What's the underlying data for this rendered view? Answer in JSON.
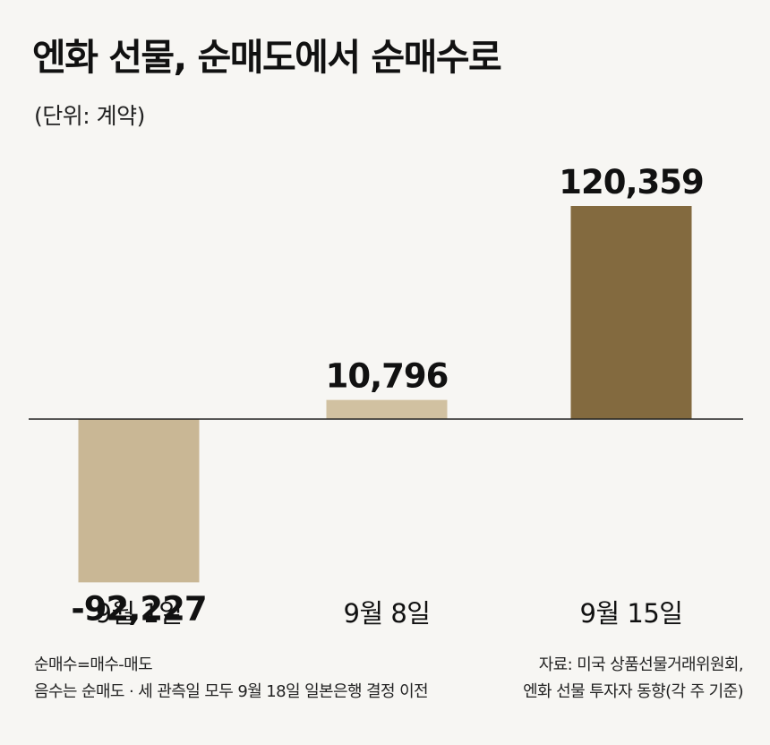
{
  "title": "엔화 선물, 순매도에서 순매수로",
  "unit": "(단위: 계약)",
  "chart_data": {
    "type": "bar",
    "categories": [
      "9월 1일",
      "9월 8일",
      "9월 15일"
    ],
    "values": [
      -92227,
      10796,
      120359
    ],
    "value_labels": [
      "-92,227",
      "10,796",
      "120,359"
    ],
    "colors": [
      "#c9b795",
      "#d1c1a1",
      "#836a3f"
    ],
    "title": "엔화 선물, 순매도에서 순매수로",
    "xlabel": "",
    "ylabel": "",
    "ylim": [
      -92227,
      120359
    ],
    "grid": false,
    "legend": "none"
  },
  "footnotes": {
    "left": [
      "순매수=매수-매도",
      "음수는 순매도 · 세 관측일 모두 9월 18일 일본은행 결정 이전"
    ],
    "right": [
      "자료: 미국 상품선물거래위원회,",
      "엔화 선물 투자자 동향(각 주 기준)"
    ]
  }
}
